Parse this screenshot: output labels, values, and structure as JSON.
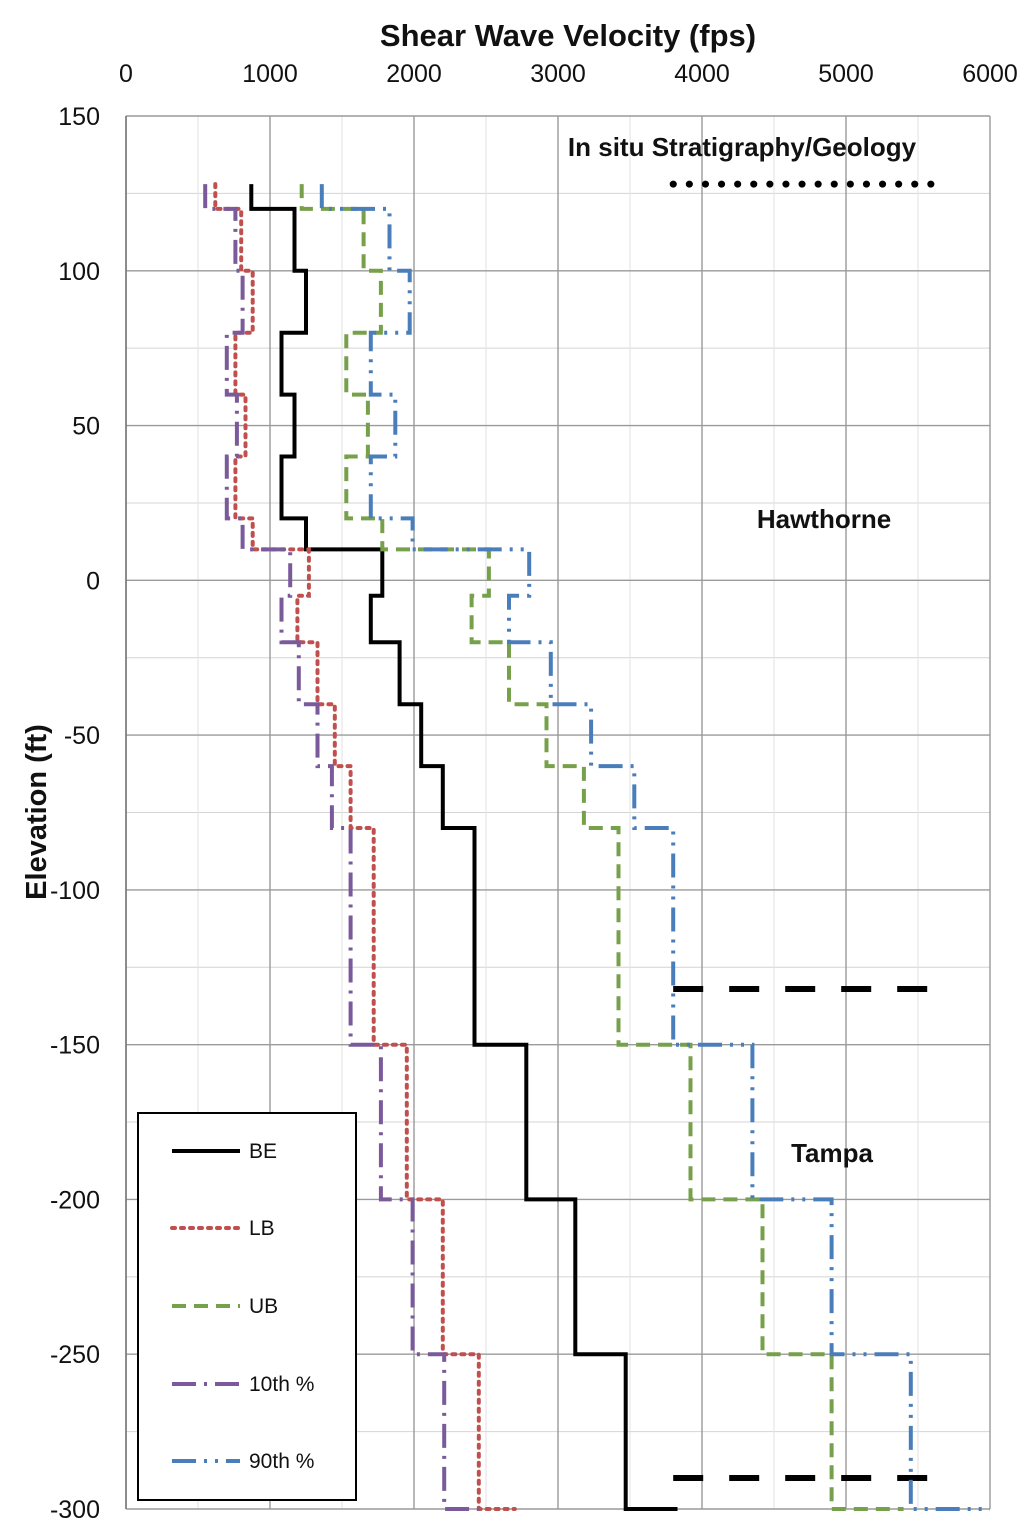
{
  "chart_data": {
    "type": "line",
    "title": "Shear Wave Velocity (fps)",
    "xlabel": "Shear Wave Velocity (fps)",
    "ylabel": "Elevation (ft)",
    "xlim": [
      0,
      6000
    ],
    "ylim": [
      -300,
      150
    ],
    "x_ticks": [
      0,
      1000,
      2000,
      3000,
      4000,
      5000,
      6000
    ],
    "y_ticks": [
      150,
      100,
      50,
      0,
      -50,
      -100,
      -150,
      -200,
      -250,
      -300
    ],
    "x_axis_position": "top",
    "grid": true,
    "minor_grid": true,
    "legend_position": "bottom-left",
    "series": [
      {
        "name": "BE",
        "color": "#000000",
        "style": "solid",
        "points": [
          [
            870,
            128
          ],
          [
            870,
            120
          ],
          [
            1170,
            120
          ],
          [
            1170,
            100
          ],
          [
            1250,
            100
          ],
          [
            1250,
            80
          ],
          [
            1080,
            80
          ],
          [
            1080,
            60
          ],
          [
            1170,
            60
          ],
          [
            1170,
            40
          ],
          [
            1080,
            40
          ],
          [
            1080,
            20
          ],
          [
            1250,
            20
          ],
          [
            1250,
            10
          ],
          [
            1780,
            10
          ],
          [
            1780,
            -5
          ],
          [
            1700,
            -5
          ],
          [
            1700,
            -20
          ],
          [
            1900,
            -20
          ],
          [
            1900,
            -40
          ],
          [
            2050,
            -40
          ],
          [
            2050,
            -60
          ],
          [
            2200,
            -60
          ],
          [
            2200,
            -80
          ],
          [
            2420,
            -80
          ],
          [
            2420,
            -150
          ],
          [
            2780,
            -150
          ],
          [
            2780,
            -200
          ],
          [
            3120,
            -200
          ],
          [
            3120,
            -250
          ],
          [
            3470,
            -250
          ],
          [
            3470,
            -300
          ],
          [
            3830,
            -300
          ]
        ]
      },
      {
        "name": "LB",
        "color": "#c0504d",
        "style": "dotted",
        "points": [
          [
            620,
            128
          ],
          [
            620,
            120
          ],
          [
            800,
            120
          ],
          [
            800,
            100
          ],
          [
            880,
            100
          ],
          [
            880,
            80
          ],
          [
            760,
            80
          ],
          [
            760,
            60
          ],
          [
            830,
            60
          ],
          [
            830,
            40
          ],
          [
            760,
            40
          ],
          [
            760,
            20
          ],
          [
            880,
            20
          ],
          [
            880,
            10
          ],
          [
            1270,
            10
          ],
          [
            1270,
            -5
          ],
          [
            1190,
            -5
          ],
          [
            1190,
            -20
          ],
          [
            1330,
            -20
          ],
          [
            1330,
            -40
          ],
          [
            1450,
            -40
          ],
          [
            1450,
            -60
          ],
          [
            1560,
            -60
          ],
          [
            1560,
            -80
          ],
          [
            1720,
            -80
          ],
          [
            1720,
            -150
          ],
          [
            1950,
            -150
          ],
          [
            1950,
            -200
          ],
          [
            2200,
            -200
          ],
          [
            2200,
            -250
          ],
          [
            2450,
            -250
          ],
          [
            2450,
            -300
          ],
          [
            2700,
            -300
          ]
        ]
      },
      {
        "name": "UB",
        "color": "#77a04a",
        "style": "dashed",
        "points": [
          [
            1220,
            128
          ],
          [
            1220,
            120
          ],
          [
            1650,
            120
          ],
          [
            1650,
            100
          ],
          [
            1770,
            100
          ],
          [
            1770,
            80
          ],
          [
            1530,
            80
          ],
          [
            1530,
            60
          ],
          [
            1680,
            60
          ],
          [
            1680,
            40
          ],
          [
            1530,
            40
          ],
          [
            1530,
            20
          ],
          [
            1780,
            20
          ],
          [
            1780,
            10
          ],
          [
            2520,
            10
          ],
          [
            2520,
            -5
          ],
          [
            2400,
            -5
          ],
          [
            2400,
            -20
          ],
          [
            2660,
            -20
          ],
          [
            2660,
            -40
          ],
          [
            2920,
            -40
          ],
          [
            2920,
            -60
          ],
          [
            3180,
            -60
          ],
          [
            3180,
            -80
          ],
          [
            3420,
            -80
          ],
          [
            3420,
            -150
          ],
          [
            3920,
            -150
          ],
          [
            3920,
            -200
          ],
          [
            4420,
            -200
          ],
          [
            4420,
            -250
          ],
          [
            4900,
            -250
          ],
          [
            4900,
            -300
          ],
          [
            5400,
            -300
          ]
        ]
      },
      {
        "name": "10th %",
        "color": "#7a5a9a",
        "style": "dashdot",
        "points": [
          [
            550,
            128
          ],
          [
            550,
            120
          ],
          [
            760,
            120
          ],
          [
            760,
            100
          ],
          [
            810,
            100
          ],
          [
            810,
            80
          ],
          [
            700,
            80
          ],
          [
            700,
            60
          ],
          [
            770,
            60
          ],
          [
            770,
            40
          ],
          [
            700,
            40
          ],
          [
            700,
            20
          ],
          [
            810,
            20
          ],
          [
            810,
            10
          ],
          [
            1140,
            10
          ],
          [
            1140,
            -5
          ],
          [
            1080,
            -5
          ],
          [
            1080,
            -20
          ],
          [
            1200,
            -20
          ],
          [
            1200,
            -40
          ],
          [
            1330,
            -40
          ],
          [
            1330,
            -60
          ],
          [
            1430,
            -60
          ],
          [
            1430,
            -80
          ],
          [
            1560,
            -80
          ],
          [
            1560,
            -150
          ],
          [
            1770,
            -150
          ],
          [
            1770,
            -200
          ],
          [
            1990,
            -200
          ],
          [
            1990,
            -250
          ],
          [
            2210,
            -250
          ],
          [
            2210,
            -300
          ],
          [
            2450,
            -300
          ]
        ]
      },
      {
        "name": "90th %",
        "color": "#4a7ebb",
        "style": "dashdotdot",
        "points": [
          [
            1360,
            128
          ],
          [
            1360,
            120
          ],
          [
            1830,
            120
          ],
          [
            1830,
            100
          ],
          [
            1970,
            100
          ],
          [
            1970,
            80
          ],
          [
            1700,
            80
          ],
          [
            1700,
            60
          ],
          [
            1870,
            60
          ],
          [
            1870,
            40
          ],
          [
            1700,
            40
          ],
          [
            1700,
            20
          ],
          [
            1990,
            20
          ],
          [
            1990,
            10
          ],
          [
            2800,
            10
          ],
          [
            2800,
            -5
          ],
          [
            2660,
            -5
          ],
          [
            2660,
            -20
          ],
          [
            2950,
            -20
          ],
          [
            2950,
            -40
          ],
          [
            3230,
            -40
          ],
          [
            3230,
            -60
          ],
          [
            3530,
            -60
          ],
          [
            3530,
            -80
          ],
          [
            3800,
            -80
          ],
          [
            3800,
            -150
          ],
          [
            4350,
            -150
          ],
          [
            4350,
            -200
          ],
          [
            4900,
            -200
          ],
          [
            4900,
            -250
          ],
          [
            5450,
            -250
          ],
          [
            5450,
            -300
          ],
          [
            6000,
            -300
          ]
        ]
      }
    ],
    "stratigraphy": {
      "header": "In situ Stratigraphy/Geology",
      "layers": [
        {
          "name": "Hawthorne",
          "label_x": 4800,
          "label_y": 20
        },
        {
          "name": "Tampa",
          "label_x": 4800,
          "label_y": -185
        }
      ],
      "boundaries": [
        {
          "elevation": 128,
          "x_from": 3800,
          "x_to": 5700,
          "style": "dotted"
        },
        {
          "elevation": -132,
          "x_from": 3800,
          "x_to": 5600,
          "style": "dashed"
        },
        {
          "elevation": -290,
          "x_from": 3800,
          "x_to": 5600,
          "style": "dashed"
        }
      ]
    }
  }
}
